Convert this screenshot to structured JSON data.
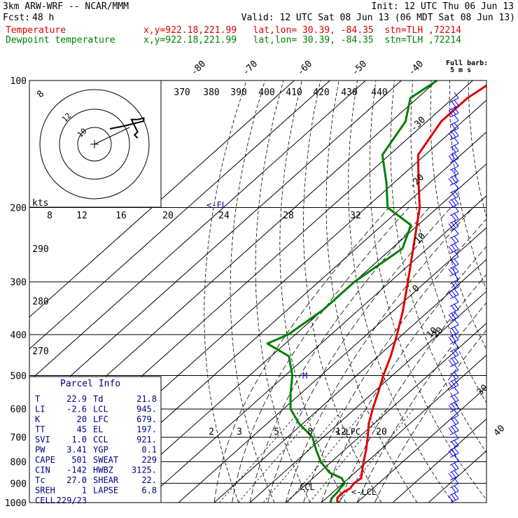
{
  "header": {
    "title": "3km ARW-WRF -- NCAR/MMM",
    "init": "Init: 12 UTC Thu 06 Jun 13",
    "fcst_label": "Fcst:",
    "fcst_value": "48 h",
    "valid": "Valid: 12 UTC Sat 08 Jun 13 (06 MDT Sat 08 Jun 13)",
    "temp_label": "Temperature",
    "temp_info": "x,y=922.18,221.99   lat,lon= 30.39, -84.35  stn=TLH ,72214",
    "dew_label": "Dewpoint temperature",
    "dew_info": "x,y=922.18,221.99   lat,lon= 30.39, -84.35  stn=TLH ,72214"
  },
  "colors": {
    "temperature": "#e00000",
    "dewpoint": "#008000",
    "parcel_text": "#000080",
    "wind": "#0000ff"
  },
  "chart_data": {
    "type": "line",
    "subtype": "skew-T log-P diagram",
    "y_scale": "log pressure",
    "ylim": [
      1000,
      100
    ],
    "pressure_ticks": [
      1000,
      900,
      800,
      700,
      600,
      500,
      400,
      300,
      200,
      100
    ],
    "skewed_temp_labels": [
      "-80",
      "-70",
      "-60",
      "-50",
      "-40",
      "-30",
      "-20",
      "-10",
      "0",
      "10",
      "20",
      "30",
      "40"
    ],
    "theta_labels": [
      "370",
      "380",
      "390",
      "400",
      "410",
      "420",
      "430",
      "440"
    ],
    "theta_low_labels": [
      "290",
      "280",
      "270"
    ],
    "hodograph_speed_labels": [
      "8",
      "12",
      "16",
      "20",
      "24",
      "28",
      "32"
    ],
    "hodograph_ring_labels": [
      "8",
      "12",
      "10"
    ],
    "hodo_unit": "kts",
    "mixing_ratio_labels": [
      "2",
      "3",
      "5",
      "8",
      "12",
      "20"
    ],
    "annotations": {
      "fl": "<-FL",
      "lfc": "<-LFC",
      "lcl": "<-LCL",
      "ccl": "CCL",
      "m": "M"
    },
    "full_barb_label": "Full barb:",
    "full_barb_value": "5 m s",
    "series": [
      {
        "name": "Temperature",
        "points": [
          [
            1000,
            24.5
          ],
          [
            975,
            23.0
          ],
          [
            950,
            22.8
          ],
          [
            925,
            23.6
          ],
          [
            900,
            23.1
          ],
          [
            875,
            23.5
          ],
          [
            850,
            22.0
          ],
          [
            800,
            19.0
          ],
          [
            750,
            16.0
          ],
          [
            700,
            12.5
          ],
          [
            650,
            8.5
          ],
          [
            600,
            5.0
          ],
          [
            550,
            1.5
          ],
          [
            500,
            -2.5
          ],
          [
            450,
            -6.5
          ],
          [
            400,
            -11.5
          ],
          [
            350,
            -17.5
          ],
          [
            300,
            -25.0
          ],
          [
            250,
            -34.0
          ],
          [
            200,
            -45.0
          ],
          [
            175,
            -53.0
          ],
          [
            150,
            -62.0
          ],
          [
            125,
            -66.0
          ],
          [
            110,
            -66.0
          ],
          [
            100,
            -64.0
          ]
        ]
      },
      {
        "name": "Dewpoint temperature",
        "points": [
          [
            1000,
            22.5
          ],
          [
            975,
            21.5
          ],
          [
            950,
            21.3
          ],
          [
            925,
            20.8
          ],
          [
            900,
            20.5
          ],
          [
            875,
            18.0
          ],
          [
            850,
            13.0
          ],
          [
            800,
            7.0
          ],
          [
            750,
            2.0
          ],
          [
            700,
            -3.0
          ],
          [
            650,
            -11.0
          ],
          [
            600,
            -18.0
          ],
          [
            550,
            -23.0
          ],
          [
            500,
            -28.0
          ],
          [
            450,
            -35.0
          ],
          [
            420,
            -45.0
          ],
          [
            400,
            -42.0
          ],
          [
            350,
            -40.0
          ],
          [
            300,
            -40.0
          ],
          [
            250,
            -37.0
          ],
          [
            220,
            -42.0
          ],
          [
            200,
            -54.0
          ],
          [
            175,
            -62.0
          ],
          [
            150,
            -72.0
          ],
          [
            125,
            -76.0
          ],
          [
            110,
            -82.0
          ],
          [
            100,
            -80.0
          ]
        ]
      }
    ],
    "hodograph_points": [
      [
        0,
        0
      ],
      [
        2,
        10
      ],
      [
        5,
        22
      ],
      [
        7,
        22
      ],
      [
        6,
        18
      ],
      [
        6,
        14
      ],
      [
        4,
        15
      ],
      [
        2,
        16
      ],
      [
        -2,
        18
      ],
      [
        -4,
        16
      ],
      [
        -6,
        18
      ]
    ]
  },
  "parcel": {
    "title": "Parcel Info",
    "rows": [
      {
        "k1": "T",
        "v1": "22.9",
        "k2": "Td",
        "v2": "21.8"
      },
      {
        "k1": "LI",
        "v1": "-2.6",
        "k2": "LCL",
        "v2": "945."
      },
      {
        "k1": "K",
        "v1": "20",
        "k2": "LFC",
        "v2": "679."
      },
      {
        "k1": "TT",
        "v1": "45",
        "k2": "EL",
        "v2": "197."
      },
      {
        "k1": "SVI",
        "v1": "1.0",
        "k2": "CCL",
        "v2": "921."
      },
      {
        "k1": "PW",
        "v1": "3.41",
        "k2": "YGP",
        "v2": "0.1"
      },
      {
        "k1": "CAPE",
        "v1": "501",
        "k2": "SWEAT",
        "v2": "229"
      },
      {
        "k1": "CIN",
        "v1": "-142",
        "k2": "HWBZ",
        "v2": "3125."
      },
      {
        "k1": "Tc",
        "v1": "27.0",
        "k2": "SHEAR",
        "v2": "22."
      },
      {
        "k1": "SREH",
        "v1": "1",
        "k2": "LAPSE",
        "v2": "6.8"
      },
      {
        "k1": "CELL",
        "v1": "229/23",
        "k2": "",
        "v2": ""
      }
    ]
  }
}
